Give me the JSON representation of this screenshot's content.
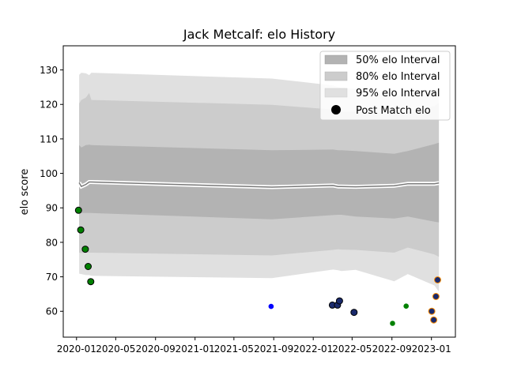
{
  "chart_data": {
    "type": "area",
    "title": "Jack Metcalf: elo History",
    "xlabel": "",
    "ylabel": "elo score",
    "xlim": [
      "2019-11-21",
      "2023-03-16"
    ],
    "ylim": [
      52.5,
      137.0
    ],
    "x_ticks": [
      "2020-01",
      "2020-05",
      "2020-09",
      "2021-01",
      "2021-05",
      "2021-09",
      "2022-01",
      "2022-05",
      "2022-09",
      "2023-01"
    ],
    "y_ticks": [
      60,
      70,
      80,
      90,
      100,
      110,
      120,
      130
    ],
    "grid": false,
    "legend_position": "top-right",
    "legend": [
      {
        "label": "50% elo Interval",
        "kind": "patch",
        "color": "#b3b3b3"
      },
      {
        "label": "80% elo Interval",
        "kind": "patch",
        "color": "#cccccc"
      },
      {
        "label": "95% elo Interval",
        "kind": "patch",
        "color": "#e0e0e0"
      },
      {
        "label": "Post Match elo",
        "kind": "marker",
        "color": "#000000"
      }
    ],
    "series": [
      {
        "x": [
          "2020-01-09",
          "2020-01-16",
          "2020-01-30",
          "2020-02-09",
          "2020-02-16",
          "2021-08-26",
          "2022-03-03",
          "2022-03-19",
          "2022-03-29",
          "2022-05-12",
          "2022-09-08",
          "2022-10-20",
          "2023-01-10",
          "2023-01-24"
        ],
        "mean": [
          97.3,
          96.2,
          96.8,
          97.5,
          97.5,
          96.0,
          96.5,
          96.2,
          96.2,
          96.1,
          96.4,
          97.0,
          97.0,
          97.2
        ],
        "p50_low": [
          88.5,
          88.5,
          88.5,
          88.5,
          88.5,
          86.7,
          87.9,
          88.0,
          88.0,
          87.5,
          86.9,
          87.5,
          86.0,
          85.8
        ],
        "p50_high": [
          108.2,
          107.5,
          108.2,
          108.3,
          108.2,
          106.7,
          106.9,
          106.7,
          106.7,
          106.5,
          105.7,
          106.5,
          108.5,
          108.9
        ],
        "p80_low": [
          77.0,
          76.9,
          77.0,
          77.0,
          77.0,
          76.2,
          77.8,
          78.0,
          77.9,
          77.8,
          77.0,
          78.5,
          76.5,
          75.8
        ],
        "p80_high": [
          120.3,
          121.3,
          122.0,
          123.3,
          121.3,
          119.9,
          118.5,
          117.9,
          117.8,
          117.9,
          117.2,
          117.5,
          119.5,
          120.3
        ],
        "p95_low": [
          70.9,
          70.8,
          70.5,
          70.5,
          70.3,
          69.6,
          72.1,
          71.9,
          71.7,
          72.0,
          68.7,
          70.8,
          67.5,
          65.7
        ],
        "p95_high": [
          128.6,
          129.2,
          129.0,
          128.5,
          129.2,
          127.5,
          125.5,
          125.0,
          124.8,
          124.5,
          122.0,
          123.5,
          124.0,
          124.8
        ]
      },
      {
        "name": "Post Match elo",
        "points": [
          {
            "x": "2020-01-07",
            "y": 89.3,
            "color": "#008000",
            "edge": "#000000",
            "size": "large"
          },
          {
            "x": "2020-01-14",
            "y": 83.6,
            "color": "#008000",
            "edge": "#000000",
            "size": "large"
          },
          {
            "x": "2020-01-28",
            "y": 78.0,
            "color": "#008000",
            "edge": "#000000",
            "size": "large"
          },
          {
            "x": "2020-02-06",
            "y": 73.0,
            "color": "#008000",
            "edge": "#000000",
            "size": "large"
          },
          {
            "x": "2020-02-14",
            "y": 68.6,
            "color": "#008000",
            "edge": "#000000",
            "size": "large"
          },
          {
            "x": "2021-08-24",
            "y": 61.4,
            "color": "#0000ff",
            "edge": "#0000ff",
            "size": "small"
          },
          {
            "x": "2022-03-01",
            "y": 61.8,
            "color": "#1a2a6c",
            "edge": "#000000",
            "size": "large"
          },
          {
            "x": "2022-03-17",
            "y": 61.8,
            "color": "#1a2a6c",
            "edge": "#000000",
            "size": "large"
          },
          {
            "x": "2022-03-23",
            "y": 63.0,
            "color": "#1a2a6c",
            "edge": "#000000",
            "size": "large"
          },
          {
            "x": "2022-05-07",
            "y": 59.7,
            "color": "#1a2a6c",
            "edge": "#000000",
            "size": "large"
          },
          {
            "x": "2022-09-03",
            "y": 56.5,
            "color": "#008000",
            "edge": "#008000",
            "size": "small"
          },
          {
            "x": "2022-10-15",
            "y": 61.5,
            "color": "#008000",
            "edge": "#008000",
            "size": "small"
          },
          {
            "x": "2023-01-02",
            "y": 60.0,
            "color": "#1a2a6c",
            "edge": "#ff8c00",
            "size": "large"
          },
          {
            "x": "2023-01-08",
            "y": 57.5,
            "color": "#1a2a6c",
            "edge": "#ff8c00",
            "size": "large"
          },
          {
            "x": "2023-01-15",
            "y": 64.3,
            "color": "#1a2a6c",
            "edge": "#ff8c00",
            "size": "large"
          },
          {
            "x": "2023-01-20",
            "y": 69.1,
            "color": "#1a2a6c",
            "edge": "#ff8c00",
            "size": "large"
          }
        ]
      }
    ],
    "colors": {
      "p50": "#b3b3b3",
      "p80": "#cccccc",
      "p95": "#e0e0e0",
      "mean_line": "#7a7a7a",
      "mean_halo": "#ffffff"
    }
  }
}
